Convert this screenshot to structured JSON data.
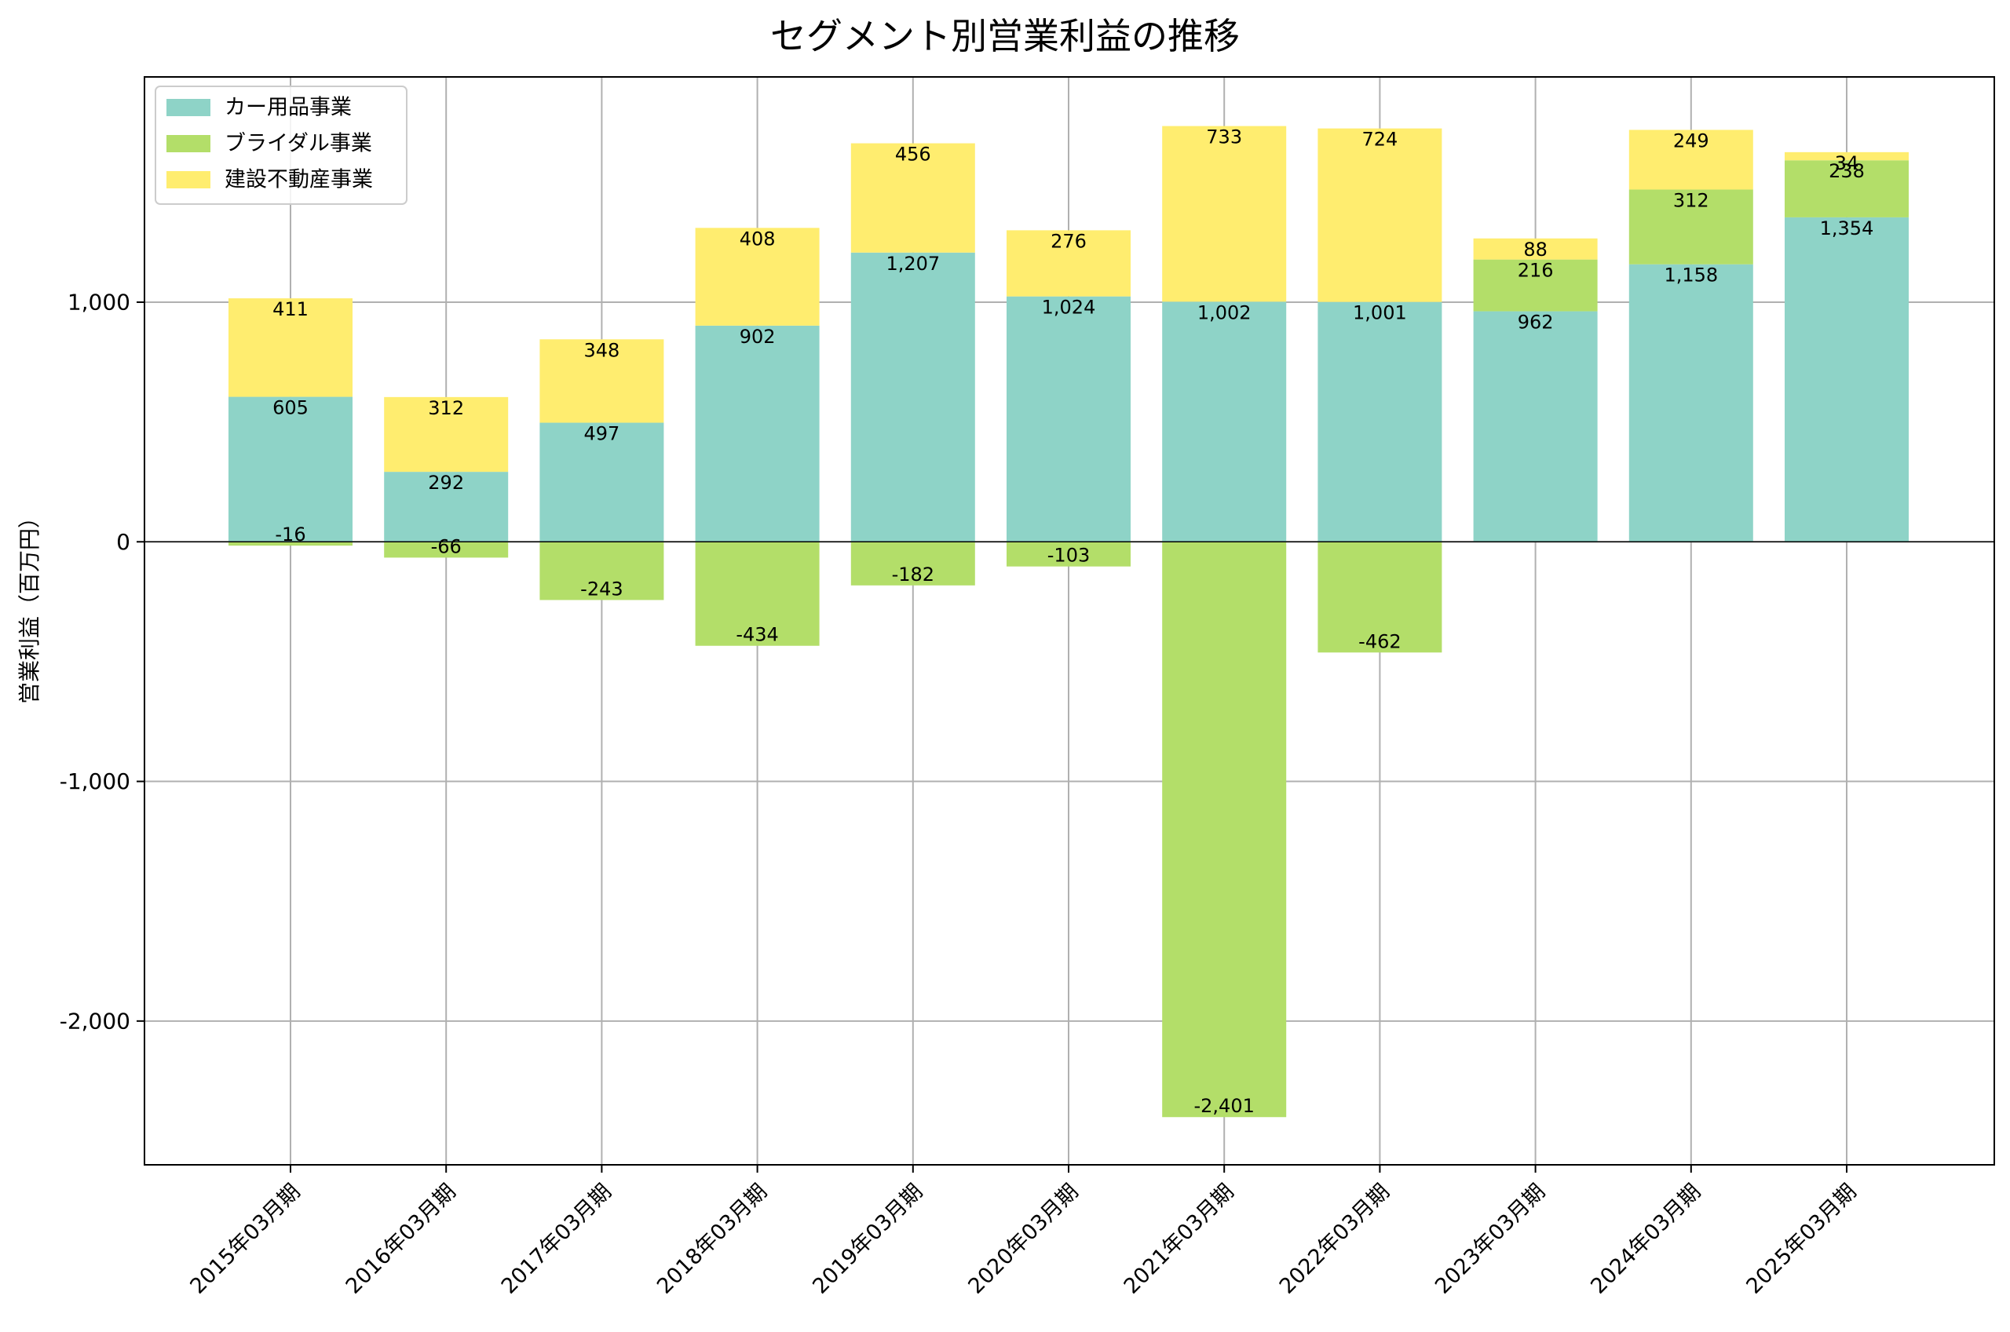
{
  "chart_data": {
    "type": "bar",
    "stacked": true,
    "title": "セグメント別営業利益の推移",
    "xlabel": "",
    "ylabel": "営業利益（百万円）",
    "categories": [
      "2015年03月期",
      "2016年03月期",
      "2017年03月期",
      "2018年03月期",
      "2019年03月期",
      "2020年03月期",
      "2021年03月期",
      "2022年03月期",
      "2023年03月期",
      "2024年03月期",
      "2025年03月期"
    ],
    "series": [
      {
        "name": "カー用品事業",
        "color": "#8ed3c7",
        "values": [
          605,
          292,
          497,
          902,
          1207,
          1024,
          1002,
          1001,
          962,
          1158,
          1354
        ]
      },
      {
        "name": "ブライダル事業",
        "color": "#b3de69",
        "values": [
          -16,
          -66,
          -243,
          -434,
          -182,
          -103,
          -2401,
          -462,
          216,
          312,
          238
        ]
      },
      {
        "name": "建設不動産事業",
        "color": "#ffed6f",
        "values": [
          411,
          312,
          348,
          408,
          456,
          276,
          733,
          724,
          88,
          249,
          34
        ]
      }
    ],
    "ylim": [
      -2600,
      1940
    ],
    "yticks": [
      -2000,
      -1000,
      0,
      1000
    ],
    "ytick_labels": [
      "-2,000",
      "-1,000",
      "0",
      "1,000"
    ],
    "grid": true,
    "legend_position": "top-left"
  }
}
